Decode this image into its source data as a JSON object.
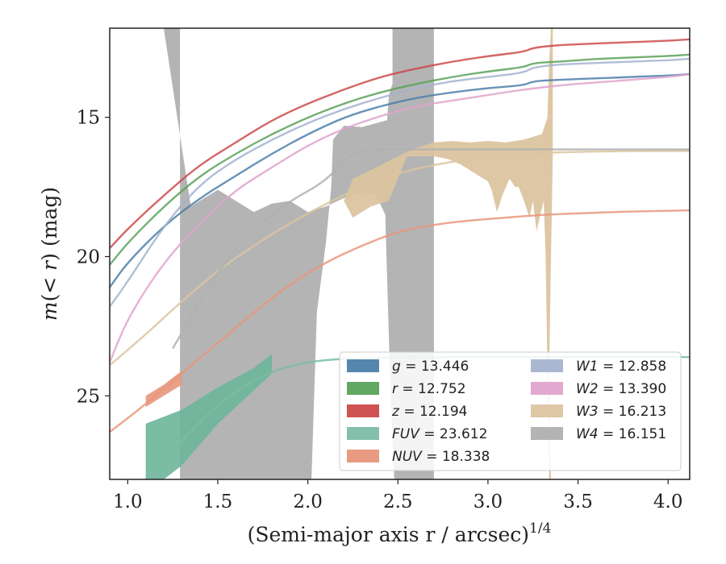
{
  "chart_data": {
    "type": "line",
    "xlabel": "(Semi-major axis r / arcsec)",
    "xlabel_exponent": "1/4",
    "ylabel_prefix": "m(",
    "ylabel_var": "< r",
    "ylabel_suffix": ") (mag)",
    "xlim": [
      0.9,
      4.12
    ],
    "ylim": [
      28.0,
      11.8
    ],
    "y_inverted": true,
    "x_ticks": [
      "1.0",
      "1.5",
      "2.0",
      "2.5",
      "3.0",
      "3.5",
      "4.0"
    ],
    "x_tick_values": [
      1.0,
      1.5,
      2.0,
      2.5,
      3.0,
      3.5,
      4.0
    ],
    "y_ticks": [
      "15",
      "20",
      "25"
    ],
    "y_tick_values": [
      15,
      20,
      25
    ],
    "legend_position": "lower right",
    "legend_columns": 2,
    "series": [
      {
        "name": "g",
        "value": "13.446",
        "color": "#4c7faa",
        "x": [
          0.9,
          1.0,
          1.2,
          1.4,
          1.6,
          1.8,
          2.0,
          2.2,
          2.4,
          2.6,
          2.8,
          3.0,
          3.2,
          3.25,
          3.4,
          3.6,
          3.8,
          4.0,
          4.12
        ],
        "y": [
          21.1,
          20.2,
          18.9,
          17.9,
          17.1,
          16.3,
          15.6,
          15.0,
          14.6,
          14.3,
          14.1,
          13.95,
          13.85,
          13.7,
          13.65,
          13.6,
          13.55,
          13.5,
          13.45
        ]
      },
      {
        "name": "r",
        "value": "12.752",
        "color": "#5aa25a",
        "x": [
          0.9,
          1.0,
          1.2,
          1.4,
          1.6,
          1.8,
          2.0,
          2.2,
          2.4,
          2.6,
          2.8,
          3.0,
          3.2,
          3.25,
          3.4,
          3.6,
          3.8,
          4.0,
          4.12
        ],
        "y": [
          20.3,
          19.5,
          18.2,
          17.1,
          16.3,
          15.6,
          15.0,
          14.5,
          14.1,
          13.8,
          13.55,
          13.35,
          13.2,
          13.05,
          13.0,
          12.9,
          12.85,
          12.8,
          12.75
        ]
      },
      {
        "name": "z",
        "value": "12.194",
        "color": "#cc4a4a",
        "x": [
          0.9,
          1.0,
          1.2,
          1.4,
          1.6,
          1.8,
          2.0,
          2.2,
          2.4,
          2.6,
          2.8,
          3.0,
          3.2,
          3.25,
          3.4,
          3.6,
          3.8,
          4.0,
          4.12
        ],
        "y": [
          19.7,
          19.0,
          17.8,
          16.7,
          15.9,
          15.1,
          14.5,
          14.0,
          13.55,
          13.25,
          13.0,
          12.8,
          12.65,
          12.5,
          12.4,
          12.35,
          12.3,
          12.25,
          12.2
        ]
      },
      {
        "name": "FUV",
        "value": "23.612",
        "color": "#7dbca6",
        "x": [
          1.1,
          1.3,
          1.5,
          1.7,
          1.9,
          2.1,
          2.3,
          2.5,
          2.7,
          3.0,
          3.5,
          4.12
        ],
        "y": [
          28.0,
          26.6,
          25.3,
          24.4,
          23.9,
          23.7,
          23.65,
          23.62,
          23.61,
          23.61,
          23.61,
          23.61
        ]
      },
      {
        "name": "NUV",
        "value": "18.338",
        "color": "#e8967a",
        "x": [
          0.9,
          1.1,
          1.3,
          1.5,
          1.7,
          1.9,
          2.1,
          2.3,
          2.5,
          2.7,
          2.9,
          3.1,
          3.3,
          3.5,
          3.7,
          3.9,
          4.12
        ],
        "y": [
          26.3,
          25.3,
          24.2,
          23.1,
          22.0,
          21.0,
          20.2,
          19.6,
          19.1,
          18.85,
          18.7,
          18.6,
          18.5,
          18.45,
          18.4,
          18.37,
          18.34
        ]
      },
      {
        "name": "W1",
        "value": "12.858",
        "color": "#a5b3cf",
        "x": [
          0.9,
          1.0,
          1.2,
          1.4,
          1.6,
          1.8,
          2.0,
          2.2,
          2.4,
          2.6,
          2.8,
          3.0,
          3.2,
          3.25,
          3.4,
          3.6,
          3.8,
          4.0,
          4.12
        ],
        "y": [
          21.8,
          20.9,
          18.9,
          17.4,
          16.5,
          15.8,
          15.2,
          14.7,
          14.3,
          13.95,
          13.7,
          13.55,
          13.4,
          13.2,
          13.1,
          13.05,
          13.0,
          12.95,
          12.9
        ]
      },
      {
        "name": "W2",
        "value": "13.390",
        "color": "#e0a3cc",
        "x": [
          0.9,
          1.0,
          1.2,
          1.4,
          1.6,
          1.8,
          2.0,
          2.2,
          2.4,
          2.6,
          2.8,
          3.0,
          3.2,
          3.4,
          3.6,
          3.8,
          4.0,
          4.12
        ],
        "y": [
          23.8,
          22.2,
          20.2,
          18.8,
          17.6,
          16.8,
          16.0,
          15.4,
          14.95,
          14.6,
          14.4,
          14.2,
          14.0,
          13.85,
          13.75,
          13.65,
          13.55,
          13.45
        ]
      },
      {
        "name": "W3",
        "value": "16.213",
        "color": "#dcc4a0",
        "x": [
          0.9,
          1.1,
          1.3,
          1.5,
          1.7,
          1.9,
          2.1,
          2.3,
          2.5,
          2.7,
          2.9,
          3.1,
          3.3,
          3.5,
          3.7,
          3.9,
          4.12
        ],
        "y": [
          23.9,
          22.8,
          21.6,
          20.5,
          19.6,
          18.8,
          18.1,
          17.5,
          17.0,
          16.7,
          16.5,
          16.35,
          16.27,
          16.24,
          16.22,
          16.21,
          16.21
        ]
      },
      {
        "name": "W4",
        "value": "16.151",
        "color": "#b0b0b0",
        "x": [
          1.25,
          1.5,
          1.7,
          1.9,
          2.1,
          2.25,
          2.4,
          2.6,
          2.8,
          3.0,
          3.2,
          3.5,
          3.8,
          4.12
        ],
        "y": [
          23.3,
          20.5,
          19.0,
          18.0,
          17.3,
          16.2,
          16.15,
          16.15,
          16.15,
          16.15,
          16.15,
          16.15,
          16.15,
          16.15
        ]
      }
    ],
    "bands": [
      {
        "name": "W4",
        "color": "#b0b0b0",
        "opacity": 0.95,
        "polys": [
          [
            [
              1.29,
              11.8
            ],
            [
              1.29,
              28.0
            ],
            [
              2.02,
              28.0
            ],
            [
              2.05,
              22.0
            ],
            [
              2.1,
              19.5
            ],
            [
              2.13,
              17.5
            ],
            [
              2.14,
              15.8
            ],
            [
              2.2,
              15.3
            ],
            [
              2.3,
              15.35
            ],
            [
              2.44,
              15.1
            ],
            [
              2.45,
              14.2
            ],
            [
              2.47,
              13.8
            ],
            [
              2.47,
              11.8
            ],
            [
              2.7,
              11.8
            ],
            [
              2.7,
              28.0
            ],
            [
              2.48,
              28.0
            ],
            [
              2.46,
              25.0
            ],
            [
              2.44,
              20.8
            ],
            [
              2.43,
              18.5
            ],
            [
              2.38,
              17.8
            ],
            [
              2.3,
              17.7
            ],
            [
              2.2,
              17.9
            ],
            [
              2.1,
              18.2
            ],
            [
              2.0,
              18.4
            ],
            [
              1.9,
              18.0
            ],
            [
              1.8,
              18.1
            ],
            [
              1.7,
              18.4
            ],
            [
              1.6,
              18.0
            ],
            [
              1.5,
              17.6
            ],
            [
              1.4,
              18.0
            ],
            [
              1.35,
              18.2
            ],
            [
              1.2,
              11.8
            ]
          ]
        ]
      },
      {
        "name": "W3",
        "color": "#dcc4a0",
        "opacity": 0.95,
        "polys": [
          [
            [
              2.2,
              18.0
            ],
            [
              2.25,
              17.2
            ],
            [
              2.35,
              16.9
            ],
            [
              2.5,
              16.4
            ],
            [
              2.6,
              16.1
            ],
            [
              2.7,
              15.9
            ],
            [
              2.8,
              15.85
            ],
            [
              2.9,
              15.9
            ],
            [
              3.0,
              15.85
            ],
            [
              3.1,
              15.9
            ],
            [
              3.2,
              15.8
            ],
            [
              3.3,
              15.6
            ],
            [
              3.33,
              15.0
            ],
            [
              3.34,
              13.0
            ],
            [
              3.35,
              11.8
            ],
            [
              3.36,
              11.8
            ],
            [
              3.36,
              16.3
            ],
            [
              3.35,
              20.0
            ],
            [
              3.34,
              24.0
            ],
            [
              3.35,
              28.0
            ],
            [
              3.34,
              28.0
            ],
            [
              3.33,
              24.0
            ],
            [
              3.32,
              20.0
            ],
            [
              3.31,
              18.0
            ],
            [
              3.29,
              18.5
            ],
            [
              3.27,
              19.1
            ],
            [
              3.25,
              18.0
            ],
            [
              3.23,
              18.6
            ],
            [
              3.2,
              18.0
            ],
            [
              3.17,
              17.5
            ],
            [
              3.15,
              17.5
            ],
            [
              3.12,
              17.2
            ],
            [
              3.08,
              17.8
            ],
            [
              3.05,
              18.4
            ],
            [
              3.02,
              17.6
            ],
            [
              3.0,
              17.3
            ],
            [
              2.95,
              17.1
            ],
            [
              2.9,
              16.9
            ],
            [
              2.85,
              16.7
            ],
            [
              2.78,
              16.5
            ],
            [
              2.7,
              16.4
            ],
            [
              2.62,
              16.4
            ],
            [
              2.55,
              16.4
            ],
            [
              2.45,
              18.0
            ],
            [
              2.35,
              18.2
            ],
            [
              2.25,
              18.6
            ]
          ]
        ]
      },
      {
        "name": "FUV",
        "color": "#6bb59a",
        "opacity": 0.9,
        "polys": [
          [
            [
              1.1,
              26.0
            ],
            [
              1.3,
              25.5
            ],
            [
              1.5,
              24.7
            ],
            [
              1.7,
              24.0
            ],
            [
              1.8,
              23.5
            ],
            [
              1.8,
              24.2
            ],
            [
              1.5,
              26.0
            ],
            [
              1.3,
              27.5
            ],
            [
              1.2,
              28.0
            ],
            [
              1.1,
              28.0
            ]
          ]
        ]
      },
      {
        "name": "NUV",
        "color": "#e8967a",
        "opacity": 0.9,
        "polys": [
          [
            [
              1.1,
              25.0
            ],
            [
              1.2,
              24.6
            ],
            [
              1.3,
              24.1
            ],
            [
              1.3,
              24.6
            ],
            [
              1.2,
              25.0
            ],
            [
              1.1,
              25.4
            ]
          ]
        ]
      }
    ]
  }
}
